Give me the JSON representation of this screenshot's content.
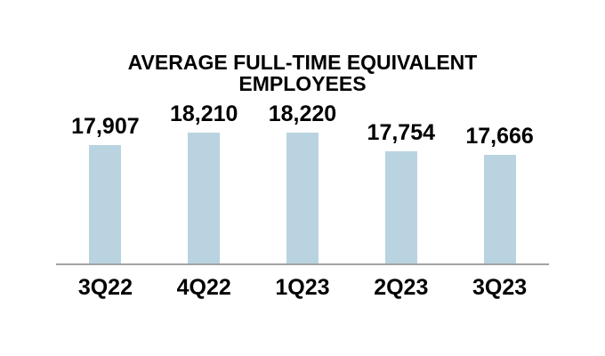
{
  "chart_data": {
    "type": "bar",
    "title": "AVERAGE FULL-TIME EQUIVALENT EMPLOYEES",
    "categories": [
      "3Q22",
      "4Q22",
      "1Q23",
      "2Q23",
      "3Q23"
    ],
    "values": [
      17907,
      18210,
      18220,
      17754,
      17666
    ],
    "value_labels": [
      "17,907",
      "18,210",
      "18,220",
      "17,754",
      "17,666"
    ],
    "xlabel": "",
    "ylabel": "",
    "ylim": [
      15000,
      19000
    ],
    "grid": false,
    "legend": false,
    "data_label_position": "above-bar",
    "bar_color": "#B9D3E0",
    "axis_line_color": "#A3A3A3",
    "text_color": "#000000",
    "background_color": "#FFFFFF"
  }
}
